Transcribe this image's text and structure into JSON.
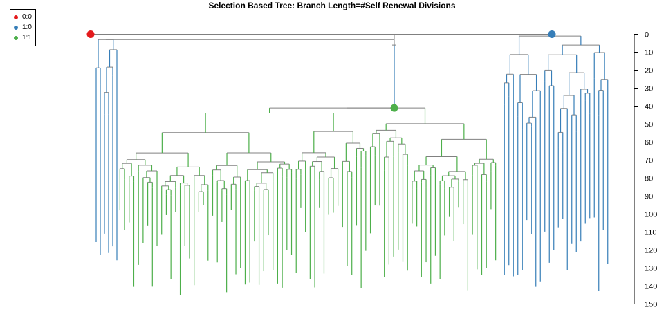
{
  "chart_data": {
    "type": "dendrogram",
    "title": "Selection Based Tree: Branch Length=#Self Renewal Divisions",
    "ylim": [
      0,
      150
    ],
    "y_axis_side": "right",
    "y_axis_reversed": true,
    "y_ticks": [
      0,
      10,
      20,
      30,
      40,
      50,
      60,
      70,
      80,
      90,
      100,
      110,
      120,
      130,
      140,
      150
    ],
    "legend": {
      "position": "top-left",
      "entries": [
        {
          "label": "0:0",
          "color": "#e41a1c"
        },
        {
          "label": "1:0",
          "color": "#377eb8"
        },
        {
          "label": "1:1",
          "color": "#4daf4a"
        }
      ]
    },
    "connector_color": "#808080",
    "nodes": [
      {
        "label": "0:0",
        "depth": 0,
        "color": "#e41a1c"
      },
      {
        "label": "1:0",
        "depth": 0,
        "color": "#377eb8"
      },
      {
        "label": "1:1",
        "depth": 41,
        "color": "#4daf4a"
      }
    ],
    "clades": [
      {
        "state": "1:0",
        "tips": 6,
        "root_depth": 3,
        "min_tip_depth": 110,
        "max_tip_depth": 127
      },
      {
        "state": "1:1",
        "tips": 82,
        "root_depth": 41,
        "min_tip_depth": 95,
        "max_tip_depth": 145
      },
      {
        "state": "1:0",
        "tips": 24,
        "root_depth": 0,
        "min_tip_depth": 100,
        "max_tip_depth": 143
      }
    ]
  }
}
